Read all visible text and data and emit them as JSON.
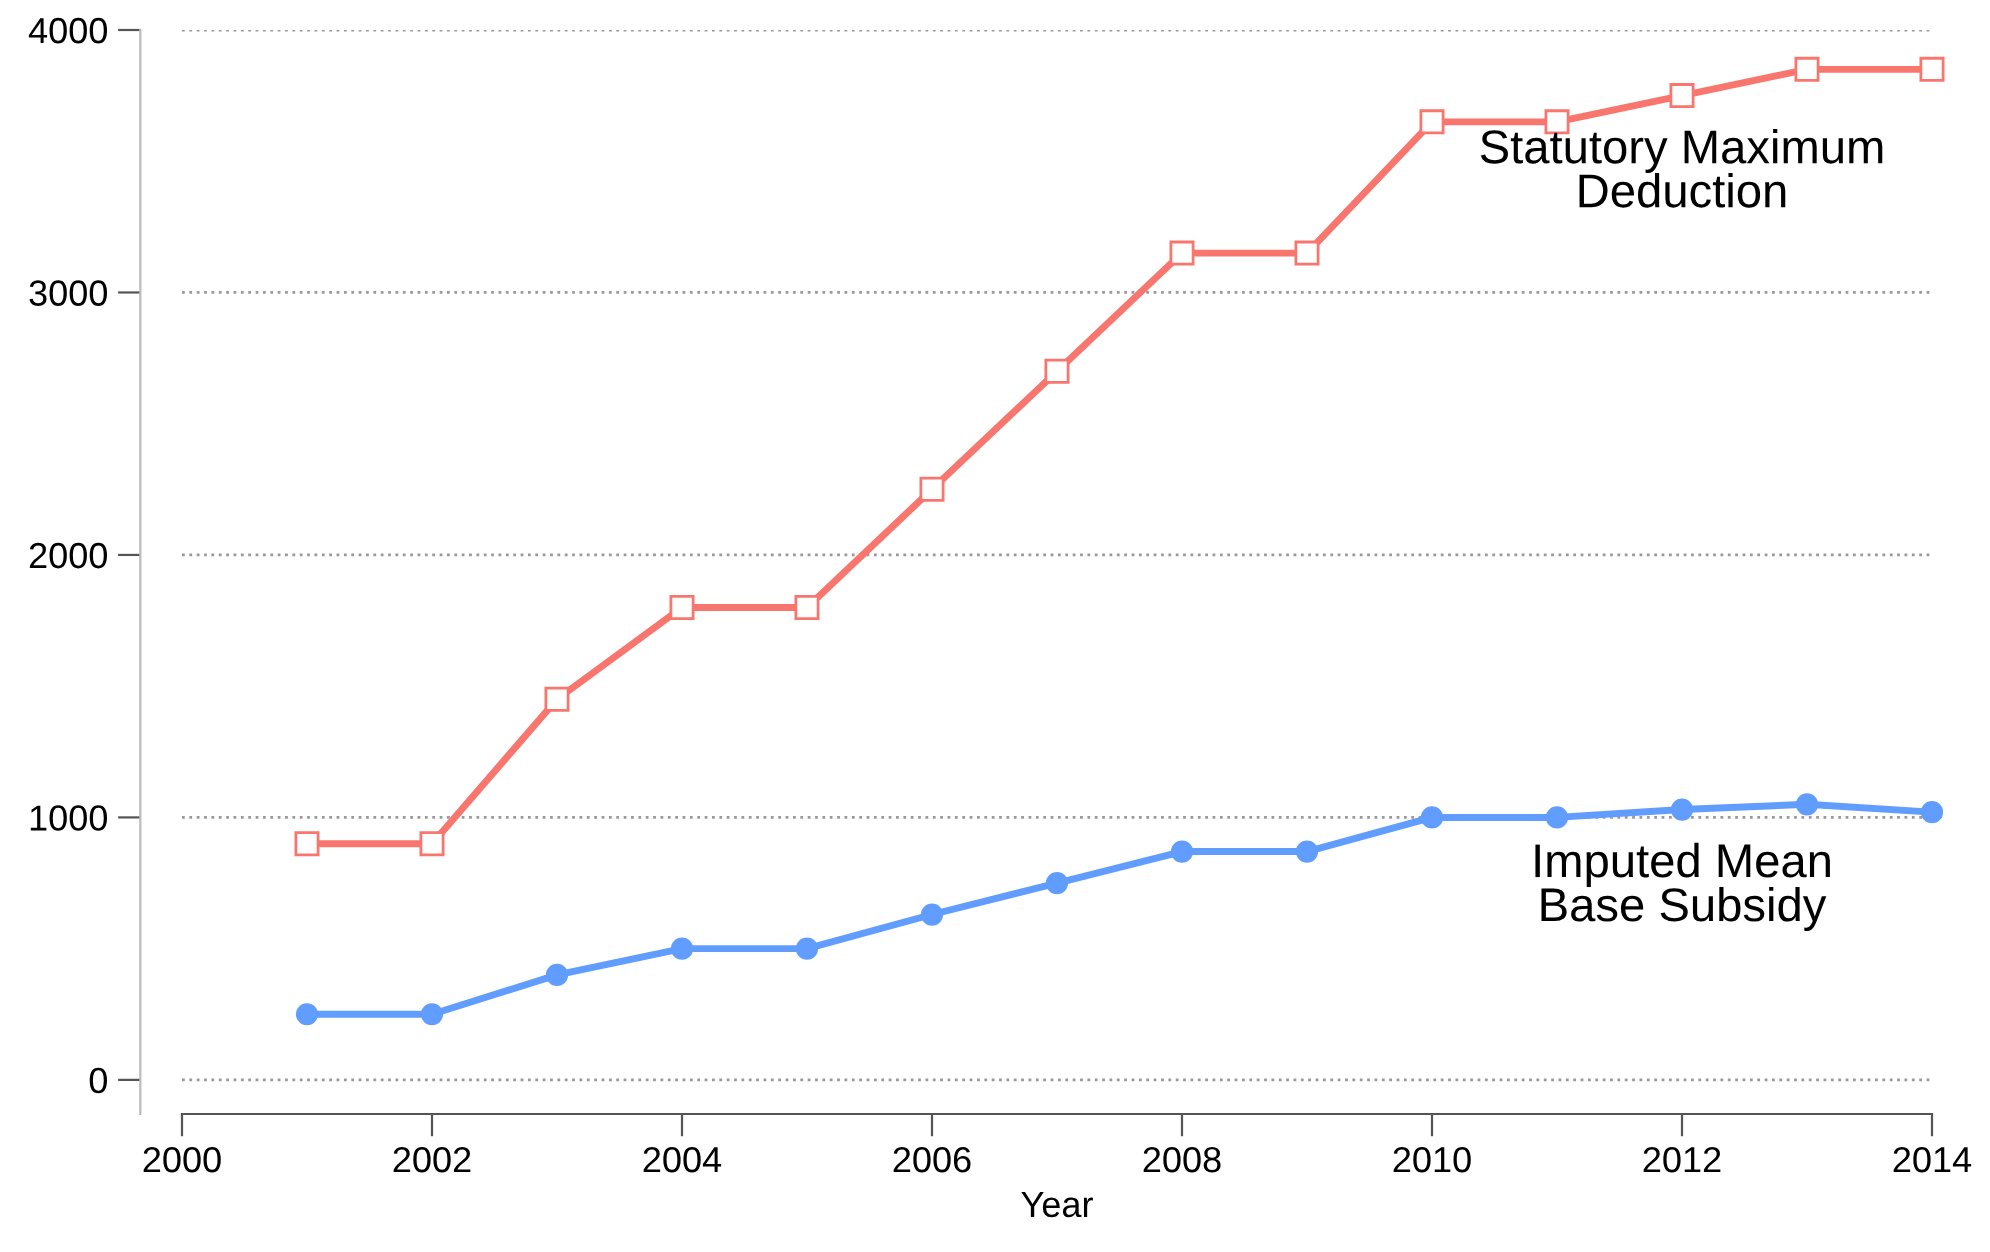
{
  "chart_data": {
    "type": "line",
    "xlabel": "Year",
    "x": [
      2001,
      2002,
      2003,
      2004,
      2005,
      2006,
      2007,
      2008,
      2009,
      2010,
      2011,
      2012,
      2013,
      2014
    ],
    "series": [
      {
        "name": "Statutory Maximum Deduction",
        "color": "#f8766d",
        "marker": "square",
        "values": [
          900,
          900,
          1450,
          1800,
          1800,
          2250,
          2700,
          3150,
          3150,
          3650,
          3650,
          3750,
          3850,
          3850
        ]
      },
      {
        "name": "Imputed Mean Base Subsidy",
        "color": "#619cff",
        "marker": "circle",
        "values": [
          250,
          250,
          400,
          500,
          500,
          630,
          750,
          870,
          870,
          1000,
          1000,
          1030,
          1050,
          1020
        ]
      }
    ],
    "xlim": [
      2000,
      2014
    ],
    "xticks": [
      2000,
      2002,
      2004,
      2006,
      2008,
      2010,
      2012,
      2014
    ],
    "ylim": [
      -130,
      4000
    ],
    "yticks": [
      0,
      1000,
      2000,
      3000,
      4000
    ],
    "grid": "y",
    "legend": false,
    "line_style": "solid"
  }
}
